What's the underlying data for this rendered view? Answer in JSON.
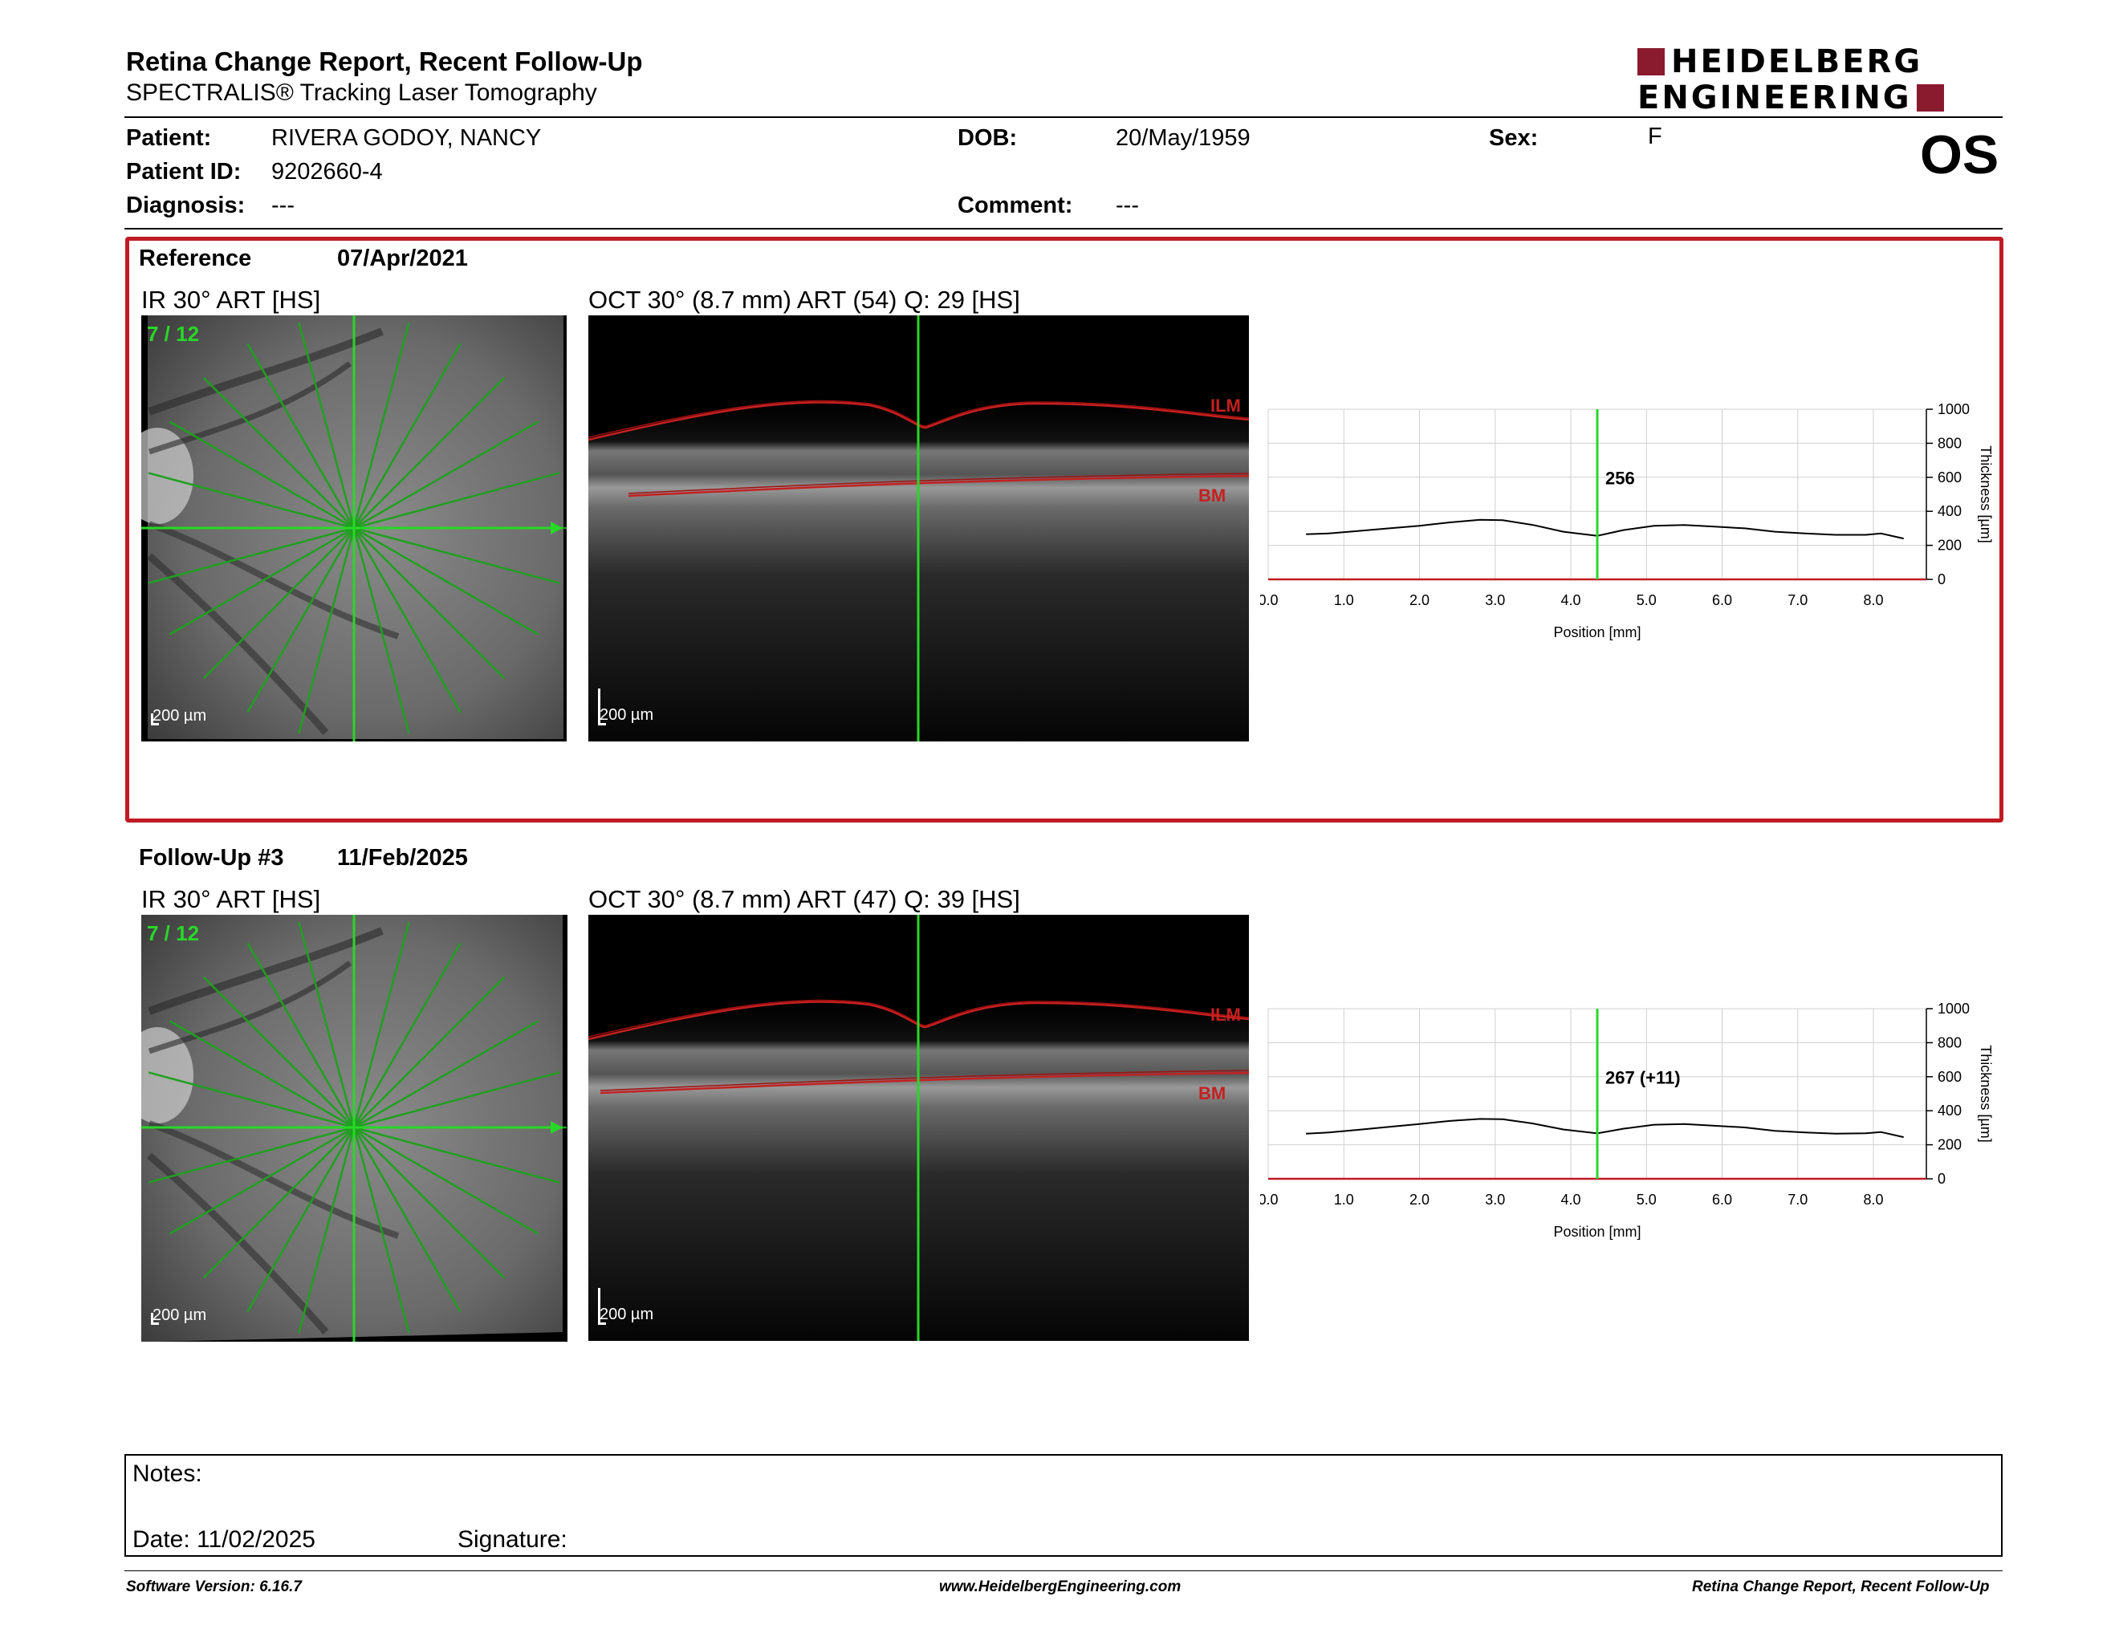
{
  "header": {
    "title": "Retina Change Report, Recent Follow-Up",
    "subtitle": "SPECTRALIS® Tracking Laser Tomography",
    "logo_line1": "HEIDELBERG",
    "logo_line2": "ENGINEERING",
    "eye": "OS"
  },
  "patient": {
    "patient_label": "Patient:",
    "patient_value": "RIVERA GODOY, NANCY",
    "id_label": "Patient ID:",
    "id_value": "9202660-4",
    "diagnosis_label": "Diagnosis:",
    "diagnosis_value": "---",
    "dob_label": "DOB:",
    "dob_value": "20/May/1959",
    "comment_label": "Comment:",
    "comment_value": "---",
    "sex_label": "Sex:",
    "sex_value": "F"
  },
  "reference": {
    "label": "Reference",
    "date": "07/Apr/2021",
    "ir_title": "IR 30° ART [HS]",
    "oct_title": "OCT 30° (8.7 mm) ART (54) Q: 29 [HS]",
    "scan_index": "7 / 12",
    "scale_ir": "200 µm",
    "scale_oct": "200 µm",
    "ilm": "ILM",
    "bm": "BM",
    "thickness_label": "256"
  },
  "followup": {
    "label": "Follow-Up #3",
    "date": "11/Feb/2025",
    "ir_title": "IR 30° ART [HS]",
    "oct_title": "OCT 30° (8.7 mm) ART (47) Q: 39 [HS]",
    "scan_index": "7 / 12",
    "scale_ir": "200 µm",
    "scale_oct": "200 µm",
    "ilm": "ILM",
    "bm": "BM",
    "thickness_label": "267 (+11)"
  },
  "chart_data": [
    {
      "type": "line",
      "xlabel": "Position [mm]",
      "ylabel": "Thickness [µm]",
      "xlim": [
        0.0,
        8.7
      ],
      "ylim": [
        0,
        1000
      ],
      "xticks": [
        "0.0",
        "1.0",
        "2.0",
        "3.0",
        "4.0",
        "5.0",
        "6.0",
        "7.0",
        "8.0"
      ],
      "yticks": [
        "0",
        "200",
        "400",
        "600",
        "800",
        "1000"
      ],
      "grid": true,
      "marker_x": 4.35,
      "series": [
        {
          "x": [
            0.5,
            0.8,
            1.2,
            1.6,
            2.0,
            2.4,
            2.8,
            3.1,
            3.5,
            3.9,
            4.35,
            4.7,
            5.1,
            5.5,
            5.9,
            6.3,
            6.7,
            7.1,
            7.5,
            7.9,
            8.1,
            8.4
          ],
          "values": [
            265,
            270,
            285,
            300,
            315,
            335,
            350,
            348,
            320,
            280,
            256,
            290,
            315,
            320,
            310,
            300,
            280,
            270,
            262,
            262,
            270,
            240
          ]
        }
      ]
    },
    {
      "type": "line",
      "xlabel": "Position [mm]",
      "ylabel": "Thickness [µm]",
      "xlim": [
        0.0,
        8.7
      ],
      "ylim": [
        0,
        1000
      ],
      "xticks": [
        "0.0",
        "1.0",
        "2.0",
        "3.0",
        "4.0",
        "5.0",
        "6.0",
        "7.0",
        "8.0"
      ],
      "yticks": [
        "0",
        "200",
        "400",
        "600",
        "800",
        "1000"
      ],
      "grid": true,
      "marker_x": 4.35,
      "series": [
        {
          "x": [
            0.5,
            0.8,
            1.2,
            1.6,
            2.0,
            2.4,
            2.8,
            3.1,
            3.5,
            3.9,
            4.35,
            4.7,
            5.1,
            5.5,
            5.9,
            6.3,
            6.7,
            7.1,
            7.5,
            7.9,
            8.1,
            8.4
          ],
          "values": [
            265,
            272,
            288,
            305,
            322,
            340,
            352,
            350,
            325,
            290,
            267,
            295,
            318,
            322,
            312,
            302,
            282,
            272,
            265,
            268,
            275,
            245
          ]
        }
      ]
    }
  ],
  "notes": {
    "notes_label": "Notes:",
    "date_label": "Date: 11/02/2025",
    "signature_label": "Signature:"
  },
  "footer": {
    "software": "Software Version: 6.16.7",
    "url": "www.HeidelbergEngineering.com",
    "report": "Retina Change Report, Recent Follow-Up"
  }
}
